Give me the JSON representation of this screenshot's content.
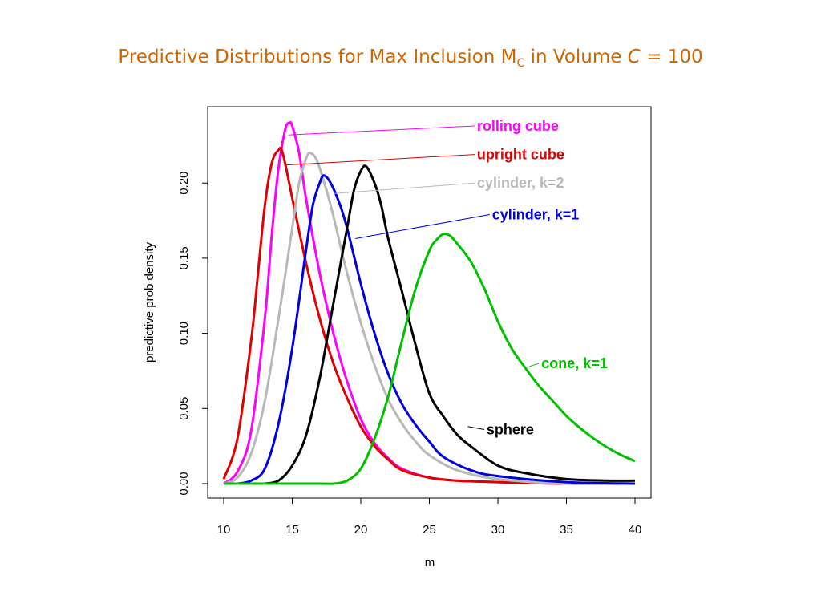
{
  "title": {
    "prefix": "Predictive Distributions for Max Inclusion M",
    "subscript": "C",
    "middle": " in Volume ",
    "italic": "C",
    "suffix": " = 100"
  },
  "chart_data": {
    "type": "line",
    "xlabel": "m",
    "ylabel": "predictive prob density",
    "xlim": [
      10,
      40
    ],
    "ylim": [
      0,
      0.25
    ],
    "xticks": [
      "10",
      "15",
      "20",
      "25",
      "30",
      "35",
      "40"
    ],
    "yticks": [
      "0.00",
      "0.05",
      "0.10",
      "0.15",
      "0.20"
    ],
    "grid": false,
    "series": [
      {
        "name": "rolling cube",
        "color": "#ff00ff",
        "x": [
          10,
          11,
          12,
          13,
          13.5,
          14,
          14.5,
          14.8,
          15,
          15.5,
          16,
          17,
          18,
          19,
          20,
          21,
          22,
          23,
          25,
          27,
          30,
          35,
          40
        ],
        "y": [
          0.0,
          0.008,
          0.035,
          0.11,
          0.165,
          0.21,
          0.236,
          0.24,
          0.238,
          0.22,
          0.19,
          0.14,
          0.1,
          0.068,
          0.043,
          0.027,
          0.017,
          0.01,
          0.004,
          0.002,
          0.001,
          0.0,
          0.0
        ]
      },
      {
        "name": "upright cube",
        "color": "#e00000",
        "x": [
          10,
          11,
          12,
          12.5,
          13,
          13.5,
          14,
          14.3,
          15,
          16,
          17,
          18,
          19,
          20,
          21,
          22,
          23,
          25,
          27,
          30,
          35,
          40
        ],
        "y": [
          0.003,
          0.03,
          0.095,
          0.14,
          0.185,
          0.213,
          0.222,
          0.22,
          0.19,
          0.147,
          0.11,
          0.08,
          0.057,
          0.038,
          0.025,
          0.016,
          0.009,
          0.004,
          0.002,
          0.001,
          0.0,
          0.0
        ]
      },
      {
        "name": "cylinder, k=2",
        "color": "#b8b8b8",
        "x": [
          10,
          11,
          12,
          13,
          14,
          15,
          15.5,
          16,
          16.3,
          16.8,
          17.5,
          18,
          19,
          20,
          21,
          22,
          23,
          24,
          25,
          27,
          30,
          35,
          40
        ],
        "y": [
          0.0,
          0.004,
          0.02,
          0.055,
          0.11,
          0.17,
          0.2,
          0.216,
          0.22,
          0.215,
          0.195,
          0.178,
          0.14,
          0.107,
          0.079,
          0.056,
          0.04,
          0.028,
          0.019,
          0.009,
          0.003,
          0.0,
          0.0
        ]
      },
      {
        "name": "cylinder, k=1",
        "color": "#0000e0",
        "x": [
          11,
          12,
          13,
          14,
          15,
          16,
          16.5,
          17,
          17.3,
          17.8,
          18.5,
          19,
          20,
          21,
          22,
          23,
          24,
          25,
          26,
          28,
          30,
          35,
          40
        ],
        "y": [
          0.0,
          0.002,
          0.01,
          0.04,
          0.09,
          0.155,
          0.185,
          0.2,
          0.205,
          0.2,
          0.185,
          0.17,
          0.133,
          0.1,
          0.073,
          0.053,
          0.039,
          0.028,
          0.018,
          0.009,
          0.005,
          0.001,
          0.0
        ]
      },
      {
        "name": "sphere",
        "color": "#000000",
        "x": [
          13,
          14,
          15,
          16,
          17,
          18,
          19,
          19.5,
          20,
          20.4,
          21,
          21.5,
          22,
          23,
          24,
          25,
          26,
          27,
          28,
          30,
          32,
          35,
          38,
          40
        ],
        "y": [
          0.0,
          0.002,
          0.012,
          0.032,
          0.07,
          0.12,
          0.17,
          0.195,
          0.208,
          0.211,
          0.2,
          0.185,
          0.163,
          0.128,
          0.092,
          0.06,
          0.045,
          0.033,
          0.025,
          0.012,
          0.007,
          0.003,
          0.002,
          0.002
        ]
      },
      {
        "name": "cone, k=1",
        "color": "#00c000",
        "x": [
          10,
          17,
          18,
          19,
          20,
          21,
          22,
          23,
          24,
          25,
          25.5,
          26,
          26.5,
          27,
          28,
          29,
          30,
          31,
          32,
          33,
          34,
          35,
          36,
          37,
          38,
          39,
          40
        ],
        "y": [
          0.0,
          0.0,
          0.0,
          0.002,
          0.01,
          0.03,
          0.058,
          0.095,
          0.13,
          0.155,
          0.162,
          0.166,
          0.165,
          0.16,
          0.148,
          0.13,
          0.108,
          0.09,
          0.077,
          0.065,
          0.055,
          0.045,
          0.037,
          0.03,
          0.024,
          0.019,
          0.015
        ]
      }
    ],
    "annotations": [
      {
        "text": "rolling cube",
        "series": "rolling cube",
        "color": "#ff00ff",
        "point": [
          14.7,
          0.232
        ],
        "anchor": [
          28.3,
          0.238
        ]
      },
      {
        "text": "upright cube",
        "series": "upright cube",
        "color": "#e00000",
        "point": [
          14.5,
          0.212
        ],
        "anchor": [
          28.3,
          0.219
        ]
      },
      {
        "text": "cylinder, k=2",
        "series": "cylinder, k=2",
        "color": "#b8b8b8",
        "point": [
          18.0,
          0.193
        ],
        "anchor": [
          28.3,
          0.2
        ]
      },
      {
        "text": "cylinder, k=1",
        "series": "cylinder, k=1",
        "color": "#0000e0",
        "point": [
          19.6,
          0.163
        ],
        "anchor": [
          29.4,
          0.179
        ]
      },
      {
        "text": "cone, k=1",
        "series": "cone, k=1",
        "color": "#00c000",
        "point": [
          32.3,
          0.078
        ],
        "anchor": [
          33.0,
          0.08
        ]
      },
      {
        "text": "sphere",
        "series": "sphere",
        "color": "#000000",
        "point": [
          27.8,
          0.038
        ],
        "anchor": [
          29.0,
          0.036
        ]
      }
    ]
  }
}
